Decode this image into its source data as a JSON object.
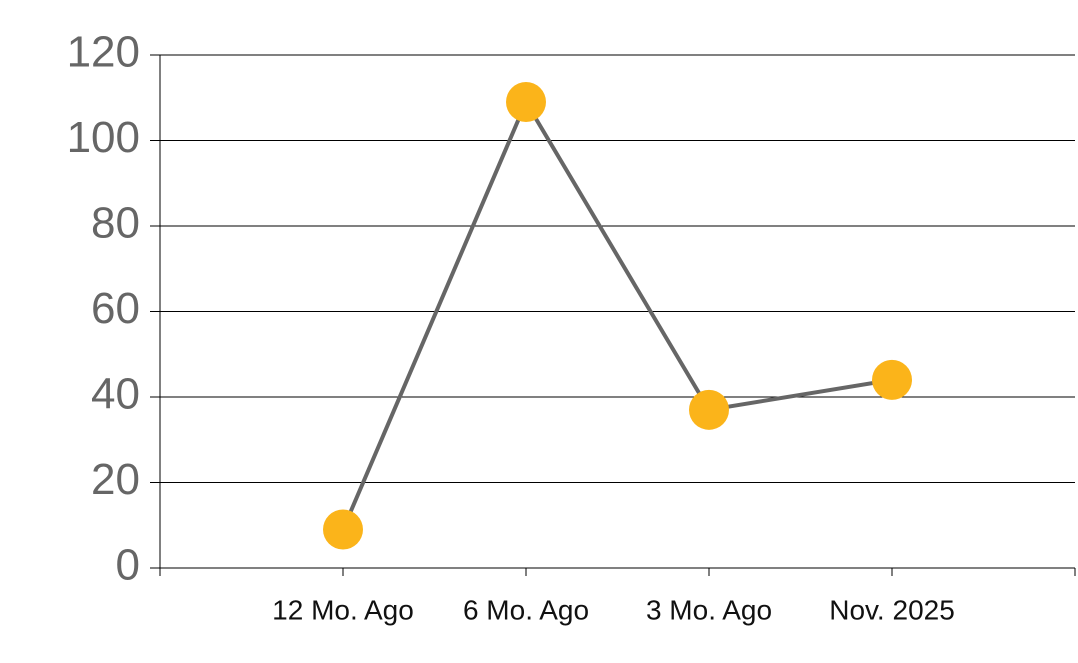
{
  "chart_data": {
    "type": "line",
    "categories": [
      null,
      "12 Mo. Ago",
      "6 Mo. Ago",
      "3 Mo. Ago",
      "Nov. 2025",
      null
    ],
    "series": [
      {
        "values": [
          null,
          9,
          109,
          37,
          44,
          null
        ],
        "color": "#666666",
        "marker_color": "#fbb41a"
      }
    ],
    "ylim": [
      0,
      120
    ],
    "yticks": [
      0,
      20,
      40,
      60,
      80,
      100,
      120
    ],
    "grid": true
  }
}
